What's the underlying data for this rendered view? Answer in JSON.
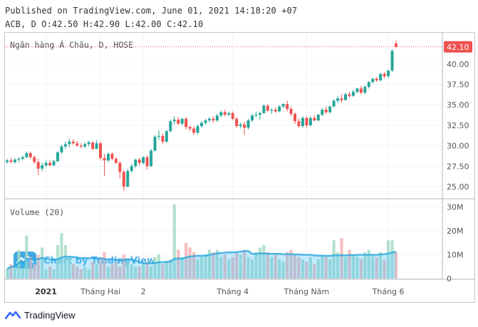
{
  "header": {
    "line1": "Published on TradingView.com, June 01, 2021 14:18:20 +07",
    "line2": "ACB, D O:42.50 H:42.90 L:42.00 C:42.10"
  },
  "colors": {
    "up": "#26a69a",
    "down": "#ef5350",
    "up_volume": "#a6dcc5",
    "down_volume": "#f4b3b3",
    "last_price_bg": "#ef5350",
    "grid": "#f0f3fa",
    "axis_text": "#555555",
    "watermark": "#2c9ee0"
  },
  "chart_data": {
    "type": "candlestick",
    "title": "Ngân hàng Á Châu, D, HOSE",
    "price_axis": {
      "ticks": [
        "25.00",
        "27.50",
        "30.00",
        "32.50",
        "35.00",
        "37.50",
        "40.00"
      ],
      "ylim": [
        23.6,
        43.3
      ]
    },
    "last_price_label": "42.10",
    "last_price": 42.1,
    "volume": {
      "label": "Volume (20)",
      "ticks": [
        "0",
        "10M",
        "20M",
        "30M"
      ],
      "ylim": [
        0,
        31
      ],
      "ma_period": 20
    },
    "x_axis": {
      "labels": [
        {
          "text": "2021",
          "bar": 10,
          "bold": true
        },
        {
          "text": "Tháng Hai",
          "bar": 24,
          "bold": false
        },
        {
          "text": "2",
          "bar": 35,
          "bold": false
        },
        {
          "text": "Tháng 4",
          "bar": 58,
          "bold": false
        },
        {
          "text": "Tháng Năm",
          "bar": 77,
          "bold": false
        },
        {
          "text": "Tháng 6",
          "bar": 98,
          "bold": false
        }
      ]
    },
    "candles": [
      [
        28.0,
        28.4,
        27.8,
        28.2
      ],
      [
        28.2,
        28.5,
        27.9,
        28.0
      ],
      [
        28.0,
        28.5,
        27.8,
        28.3
      ],
      [
        28.3,
        28.6,
        28.0,
        28.4
      ],
      [
        28.4,
        28.8,
        28.2,
        28.6
      ],
      [
        28.6,
        29.3,
        28.5,
        29.1
      ],
      [
        29.1,
        29.3,
        28.4,
        28.6
      ],
      [
        28.6,
        28.8,
        27.8,
        28.0
      ],
      [
        28.0,
        28.4,
        26.4,
        27.2
      ],
      [
        27.2,
        27.9,
        26.9,
        27.6
      ],
      [
        27.6,
        28.2,
        27.4,
        27.9
      ],
      [
        27.9,
        28.2,
        27.5,
        27.6
      ],
      [
        27.6,
        28.3,
        27.5,
        28.1
      ],
      [
        28.1,
        29.3,
        28.0,
        29.2
      ],
      [
        29.2,
        30.1,
        29.0,
        29.9
      ],
      [
        29.9,
        30.5,
        29.6,
        30.2
      ],
      [
        30.2,
        30.9,
        29.8,
        30.5
      ],
      [
        30.5,
        30.8,
        30.1,
        30.3
      ],
      [
        30.3,
        30.6,
        29.9,
        30.0
      ],
      [
        30.0,
        30.3,
        29.7,
        29.9
      ],
      [
        29.9,
        30.4,
        29.7,
        30.2
      ],
      [
        30.2,
        30.6,
        29.9,
        30.4
      ],
      [
        30.4,
        30.5,
        29.5,
        29.6
      ],
      [
        29.6,
        30.7,
        29.6,
        30.3
      ],
      [
        30.3,
        30.5,
        28.2,
        28.5
      ],
      [
        28.5,
        29.0,
        26.3,
        28.2
      ],
      [
        28.2,
        29.2,
        28.0,
        29.0
      ],
      [
        29.0,
        29.2,
        28.2,
        28.4
      ],
      [
        28.4,
        28.6,
        27.8,
        27.9
      ],
      [
        27.9,
        28.1,
        26.0,
        26.8
      ],
      [
        26.8,
        27.0,
        24.5,
        25.0
      ],
      [
        25.0,
        27.2,
        24.9,
        26.9
      ],
      [
        26.9,
        27.8,
        26.7,
        27.5
      ],
      [
        27.5,
        28.4,
        27.3,
        28.3
      ],
      [
        28.3,
        28.5,
        27.6,
        27.9
      ],
      [
        27.9,
        28.7,
        27.7,
        28.6
      ],
      [
        28.6,
        28.8,
        27.1,
        27.5
      ],
      [
        27.5,
        29.6,
        27.4,
        29.4
      ],
      [
        29.4,
        31.3,
        29.3,
        31.1
      ],
      [
        31.1,
        31.9,
        30.7,
        31.2
      ],
      [
        31.2,
        31.5,
        30.2,
        30.5
      ],
      [
        30.5,
        31.9,
        30.4,
        31.8
      ],
      [
        31.8,
        33.2,
        31.6,
        33.0
      ],
      [
        33.0,
        33.6,
        32.6,
        33.2
      ],
      [
        33.2,
        33.5,
        32.5,
        32.7
      ],
      [
        32.7,
        33.4,
        32.5,
        33.3
      ],
      [
        33.3,
        33.5,
        32.0,
        32.3
      ],
      [
        32.3,
        32.5,
        31.8,
        32.1
      ],
      [
        32.1,
        32.4,
        31.3,
        31.6
      ],
      [
        31.6,
        32.6,
        31.4,
        32.4
      ],
      [
        32.4,
        33.0,
        32.2,
        32.8
      ],
      [
        32.8,
        33.3,
        32.6,
        33.1
      ],
      [
        33.1,
        33.5,
        32.9,
        33.3
      ],
      [
        33.3,
        33.6,
        32.8,
        33.1
      ],
      [
        33.1,
        33.9,
        32.9,
        33.7
      ],
      [
        33.7,
        34.3,
        33.5,
        34.1
      ],
      [
        34.1,
        34.4,
        33.6,
        33.8
      ],
      [
        33.8,
        34.2,
        33.6,
        34.0
      ],
      [
        34.0,
        34.2,
        33.1,
        33.3
      ],
      [
        33.3,
        33.5,
        32.2,
        32.4
      ],
      [
        32.4,
        32.8,
        32.1,
        32.6
      ],
      [
        32.6,
        32.9,
        31.3,
        32.2
      ],
      [
        32.2,
        33.3,
        32.0,
        33.1
      ],
      [
        33.1,
        33.9,
        32.9,
        33.7
      ],
      [
        33.7,
        34.2,
        33.5,
        33.8
      ],
      [
        33.8,
        34.2,
        33.2,
        34.0
      ],
      [
        34.0,
        35.1,
        33.9,
        34.9
      ],
      [
        34.9,
        35.1,
        34.1,
        34.3
      ],
      [
        34.3,
        34.6,
        33.9,
        34.4
      ],
      [
        34.4,
        34.7,
        34.0,
        34.2
      ],
      [
        34.2,
        35.0,
        34.1,
        34.8
      ],
      [
        34.8,
        35.2,
        34.6,
        35.1
      ],
      [
        35.1,
        35.5,
        34.2,
        34.5
      ],
      [
        34.5,
        34.8,
        33.6,
        33.9
      ],
      [
        33.9,
        34.1,
        32.7,
        33.0
      ],
      [
        33.0,
        33.3,
        32.2,
        32.4
      ],
      [
        32.4,
        33.6,
        32.2,
        33.4
      ],
      [
        33.4,
        33.6,
        32.2,
        32.5
      ],
      [
        32.5,
        33.6,
        32.4,
        33.4
      ],
      [
        33.4,
        33.7,
        33.0,
        33.1
      ],
      [
        33.1,
        33.9,
        33.0,
        33.8
      ],
      [
        33.8,
        34.6,
        33.6,
        34.4
      ],
      [
        34.4,
        34.8,
        33.9,
        34.1
      ],
      [
        34.1,
        34.9,
        34.0,
        34.8
      ],
      [
        34.8,
        35.7,
        34.7,
        35.5
      ],
      [
        35.5,
        36.1,
        35.2,
        35.8
      ],
      [
        35.8,
        36.3,
        35.3,
        35.6
      ],
      [
        35.6,
        36.5,
        35.5,
        36.3
      ],
      [
        36.3,
        36.6,
        35.9,
        36.1
      ],
      [
        36.1,
        36.8,
        36.0,
        36.6
      ],
      [
        36.6,
        37.1,
        36.4,
        37.0
      ],
      [
        37.0,
        37.3,
        36.3,
        36.5
      ],
      [
        36.5,
        37.4,
        36.3,
        37.2
      ],
      [
        37.2,
        37.9,
        37.0,
        37.8
      ],
      [
        37.8,
        38.3,
        37.6,
        38.2
      ],
      [
        38.2,
        38.4,
        37.8,
        38.0
      ],
      [
        38.0,
        38.9,
        37.9,
        38.8
      ],
      [
        38.8,
        39.0,
        38.2,
        38.5
      ],
      [
        38.5,
        39.3,
        38.3,
        39.2
      ],
      [
        39.2,
        41.8,
        39.0,
        41.6
      ],
      [
        42.5,
        42.9,
        42.0,
        42.1
      ]
    ],
    "volumes": [
      4,
      6,
      5,
      12,
      4,
      18,
      9,
      6,
      10,
      13,
      4,
      5,
      4,
      14,
      19,
      14,
      9,
      6,
      5,
      4,
      5,
      4,
      7,
      6,
      9,
      11,
      5,
      6,
      7,
      5,
      10,
      8,
      6,
      5,
      5,
      6,
      7,
      5,
      9,
      10,
      6,
      7,
      8,
      31,
      12,
      9,
      15,
      13,
      11,
      8,
      9,
      10,
      12,
      11,
      12,
      9,
      10,
      8,
      9,
      11,
      10,
      12,
      9,
      8,
      11,
      13,
      14,
      11,
      9,
      10,
      8,
      7,
      11,
      12,
      10,
      9,
      8,
      7,
      9,
      6,
      8,
      10,
      9,
      8,
      16,
      11,
      17,
      9,
      12,
      10,
      9,
      8,
      11,
      12,
      10,
      9,
      11,
      8,
      16,
      16,
      11
    ]
  },
  "watermark_text": "Chart by TradingView",
  "brand": {
    "name": "TradingView"
  }
}
